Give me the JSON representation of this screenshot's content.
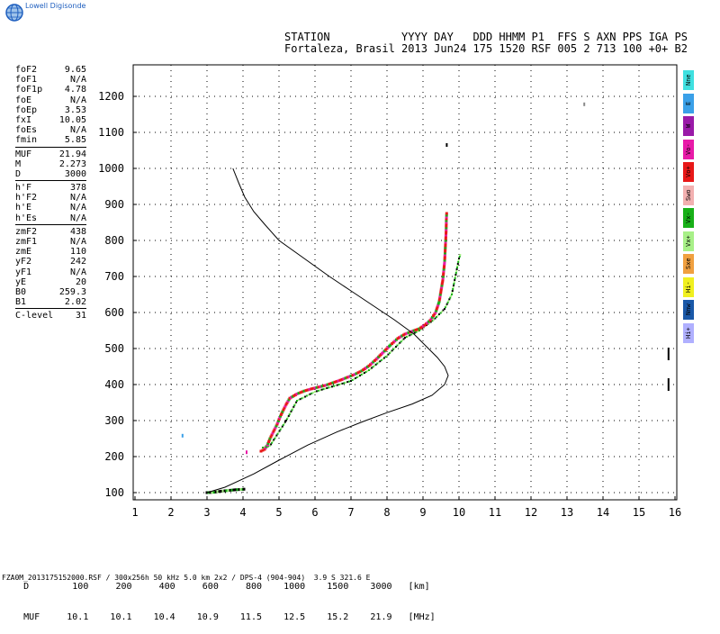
{
  "brand": "Lowell Digisonde",
  "header": {
    "line1": "STATION           YYYY DAY   DDD HHMM P1  FFS S AXN PPS IGA PS",
    "line2": "Fortaleza, Brasil 2013 Jun24 175 1520 RSF 005 2 713 100 +0+ B2"
  },
  "params": [
    {
      "k": "foF2",
      "v": "9.65"
    },
    {
      "k": "foF1",
      "v": "N/A"
    },
    {
      "k": "foF1p",
      "v": "4.78"
    },
    {
      "k": "foE",
      "v": "N/A"
    },
    {
      "k": "foEp",
      "v": "3.53"
    },
    {
      "k": "fxI",
      "v": "10.05"
    },
    {
      "k": "foEs",
      "v": "N/A"
    },
    {
      "k": "fmin",
      "v": "5.85"
    },
    {
      "sep": true
    },
    {
      "k": "MUF",
      "v": "21.94"
    },
    {
      "k": "M",
      "v": "2.273"
    },
    {
      "k": "D",
      "v": "3000"
    },
    {
      "sep": true
    },
    {
      "k": "h'F",
      "v": "378"
    },
    {
      "k": "h'F2",
      "v": "N/A"
    },
    {
      "k": "h'E",
      "v": "N/A"
    },
    {
      "k": "h'Es",
      "v": "N/A"
    },
    {
      "sep": true
    },
    {
      "k": "zmF2",
      "v": "438"
    },
    {
      "k": "zmF1",
      "v": "N/A"
    },
    {
      "k": "zmE",
      "v": "110"
    },
    {
      "k": "yF2",
      "v": "242"
    },
    {
      "k": "yF1",
      "v": "N/A"
    },
    {
      "k": "yE",
      "v": "20"
    },
    {
      "k": "B0",
      "v": "259.3"
    },
    {
      "k": "B1",
      "v": "2.02"
    },
    {
      "sep": true
    },
    {
      "k": "C-level",
      "v": "31"
    }
  ],
  "legend": [
    {
      "label": "Nne",
      "color": "#3fe0e0"
    },
    {
      "label": "E",
      "color": "#3aa0e8"
    },
    {
      "label": "W",
      "color": "#9a1aa8"
    },
    {
      "label": "Vo-",
      "color": "#e81aa8"
    },
    {
      "label": "Vo+",
      "color": "#e81818"
    },
    {
      "label": "Swo",
      "color": "#f2b0b0"
    },
    {
      "label": "Vx-",
      "color": "#18b018"
    },
    {
      "label": "Vx+",
      "color": "#a8f088"
    },
    {
      "label": "Sxe",
      "color": "#f0a040"
    },
    {
      "label": "Hi-",
      "color": "#f0f020"
    },
    {
      "label": "Nnw",
      "color": "#1a58a8"
    },
    {
      "label": "Hi+",
      "color": "#b0b0ff"
    }
  ],
  "muf_table": {
    "d_label": "D",
    "d_values": [
      "100",
      "200",
      "400",
      "600",
      "800",
      "1000",
      "1500",
      "3000"
    ],
    "d_unit": "[km]",
    "muf_label": "MUF",
    "muf_values": [
      "10.1",
      "10.1",
      "10.4",
      "10.9",
      "11.5",
      "12.5",
      "15.2",
      "21.9"
    ],
    "muf_unit": "[MHz]"
  },
  "footer": "FZA0M_2013175152000.RSF / 300x256h 50 kHz 5.0 km 2x2 / DPS-4 (904-904)  3.9 S 321.6 E",
  "chart_data": {
    "type": "scatter",
    "title": "",
    "xlabel": "",
    "ylabel": "",
    "xlim": [
      1,
      16
    ],
    "ylim": [
      80,
      1280
    ],
    "xticks": [
      1,
      2,
      3,
      4,
      5,
      6,
      7,
      8,
      9,
      10,
      11,
      12,
      13,
      14,
      15,
      16
    ],
    "yticks": [
      100,
      200,
      300,
      400,
      500,
      600,
      700,
      800,
      900,
      1000,
      1100,
      1200
    ],
    "grid": "dotted",
    "profile_curve": [
      [
        3.0,
        100
      ],
      [
        3.5,
        115
      ],
      [
        4.3,
        152
      ],
      [
        5.0,
        190
      ],
      [
        5.8,
        232
      ],
      [
        6.6,
        268
      ],
      [
        7.3,
        296
      ],
      [
        8.0,
        322
      ],
      [
        8.7,
        346
      ],
      [
        9.25,
        370
      ],
      [
        9.6,
        400
      ],
      [
        9.7,
        425
      ],
      [
        9.6,
        450
      ],
      [
        9.4,
        475
      ],
      [
        9.15,
        500
      ],
      [
        8.75,
        540
      ],
      [
        8.2,
        580
      ],
      [
        7.6,
        620
      ],
      [
        7.0,
        660
      ],
      [
        6.4,
        700
      ],
      [
        5.7,
        750
      ],
      [
        5.0,
        800
      ],
      [
        4.6,
        845
      ],
      [
        4.3,
        880
      ],
      [
        4.05,
        920
      ],
      [
        3.88,
        960
      ],
      [
        3.72,
        1000
      ]
    ],
    "trace_ordinary": [
      [
        4.5,
        215
      ],
      [
        4.6,
        220
      ],
      [
        4.68,
        232
      ],
      [
        4.75,
        250
      ],
      [
        4.85,
        270
      ],
      [
        4.95,
        290
      ],
      [
        5.02,
        308
      ],
      [
        5.1,
        325
      ],
      [
        5.2,
        345
      ],
      [
        5.3,
        362
      ],
      [
        5.5,
        374
      ],
      [
        5.7,
        382
      ],
      [
        5.9,
        388
      ],
      [
        6.1,
        393
      ],
      [
        6.3,
        398
      ],
      [
        6.5,
        405
      ],
      [
        6.7,
        412
      ],
      [
        6.9,
        420
      ],
      [
        7.1,
        428
      ],
      [
        7.3,
        438
      ],
      [
        7.5,
        452
      ],
      [
        7.7,
        470
      ],
      [
        7.9,
        490
      ],
      [
        8.1,
        510
      ],
      [
        8.3,
        528
      ],
      [
        8.5,
        540
      ],
      [
        8.7,
        548
      ],
      [
        8.9,
        555
      ],
      [
        9.05,
        565
      ],
      [
        9.2,
        578
      ],
      [
        9.35,
        600
      ],
      [
        9.45,
        630
      ],
      [
        9.5,
        660
      ],
      [
        9.55,
        690
      ],
      [
        9.6,
        740
      ],
      [
        9.62,
        780
      ],
      [
        9.64,
        820
      ],
      [
        9.65,
        860
      ],
      [
        9.66,
        880
      ]
    ],
    "trace_extraordinary": [
      [
        4.55,
        225
      ],
      [
        4.75,
        230
      ],
      [
        5.2,
        300
      ],
      [
        5.5,
        355
      ],
      [
        6.0,
        380
      ],
      [
        7.0,
        410
      ],
      [
        7.5,
        440
      ],
      [
        8.0,
        480
      ],
      [
        8.5,
        530
      ],
      [
        8.9,
        550
      ],
      [
        9.3,
        580
      ],
      [
        9.6,
        610
      ],
      [
        9.8,
        650
      ],
      [
        9.9,
        700
      ],
      [
        10.0,
        750
      ],
      [
        10.05,
        765
      ]
    ],
    "trace_low": [
      [
        3.0,
        100
      ],
      [
        3.2,
        101
      ],
      [
        3.4,
        104
      ],
      [
        3.6,
        106
      ],
      [
        3.8,
        108
      ],
      [
        4.0,
        109
      ],
      [
        4.05,
        110
      ]
    ],
    "isolated_points": [
      [
        2.32,
        258
      ],
      [
        4.1,
        212
      ],
      [
        13.48,
        1178
      ],
      [
        9.66,
        1065
      ],
      [
        15.82,
        485
      ],
      [
        15.82,
        400
      ]
    ]
  }
}
